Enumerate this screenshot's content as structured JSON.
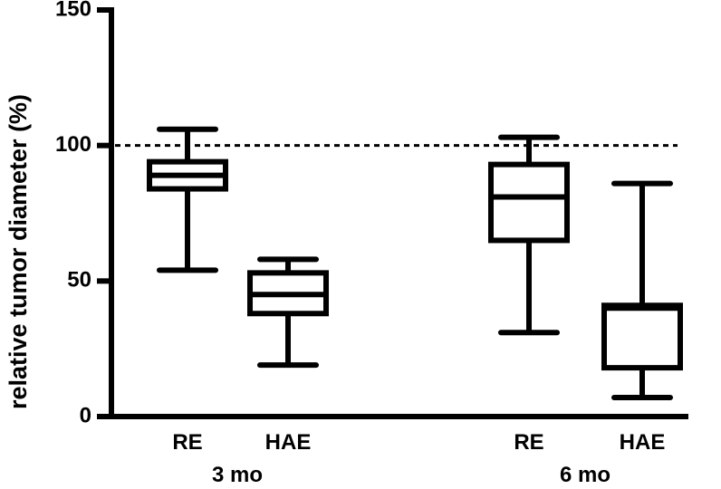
{
  "chart_data": {
    "type": "box",
    "ylabel": "relative tumor diameter (%)",
    "ylim": [
      0,
      150
    ],
    "yticks": [
      0,
      50,
      100,
      150
    ],
    "yticks_labeled": [
      0,
      50,
      100,
      150
    ],
    "reference_line": {
      "y": 100,
      "style": "dotted"
    },
    "groups": [
      {
        "label": "3 mo",
        "categories": [
          "RE",
          "HAE"
        ]
      },
      {
        "label": "6 mo",
        "categories": [
          "RE",
          "HAE"
        ]
      }
    ],
    "boxes": [
      {
        "group": "3 mo",
        "category": "RE",
        "min": 54,
        "q1": 84,
        "median": 89,
        "q3": 94,
        "max": 106
      },
      {
        "group": "3 mo",
        "category": "HAE",
        "min": 19,
        "q1": 38,
        "median": 45,
        "q3": 53,
        "max": 58
      },
      {
        "group": "6 mo",
        "category": "RE",
        "min": 31,
        "q1": 65,
        "median": 81,
        "q3": 93,
        "max": 103
      },
      {
        "group": "6 mo",
        "category": "HAE",
        "min": 7,
        "q1": 18,
        "median": 40,
        "q3": 41,
        "max": 86
      }
    ],
    "grid": false,
    "legend": "none"
  }
}
